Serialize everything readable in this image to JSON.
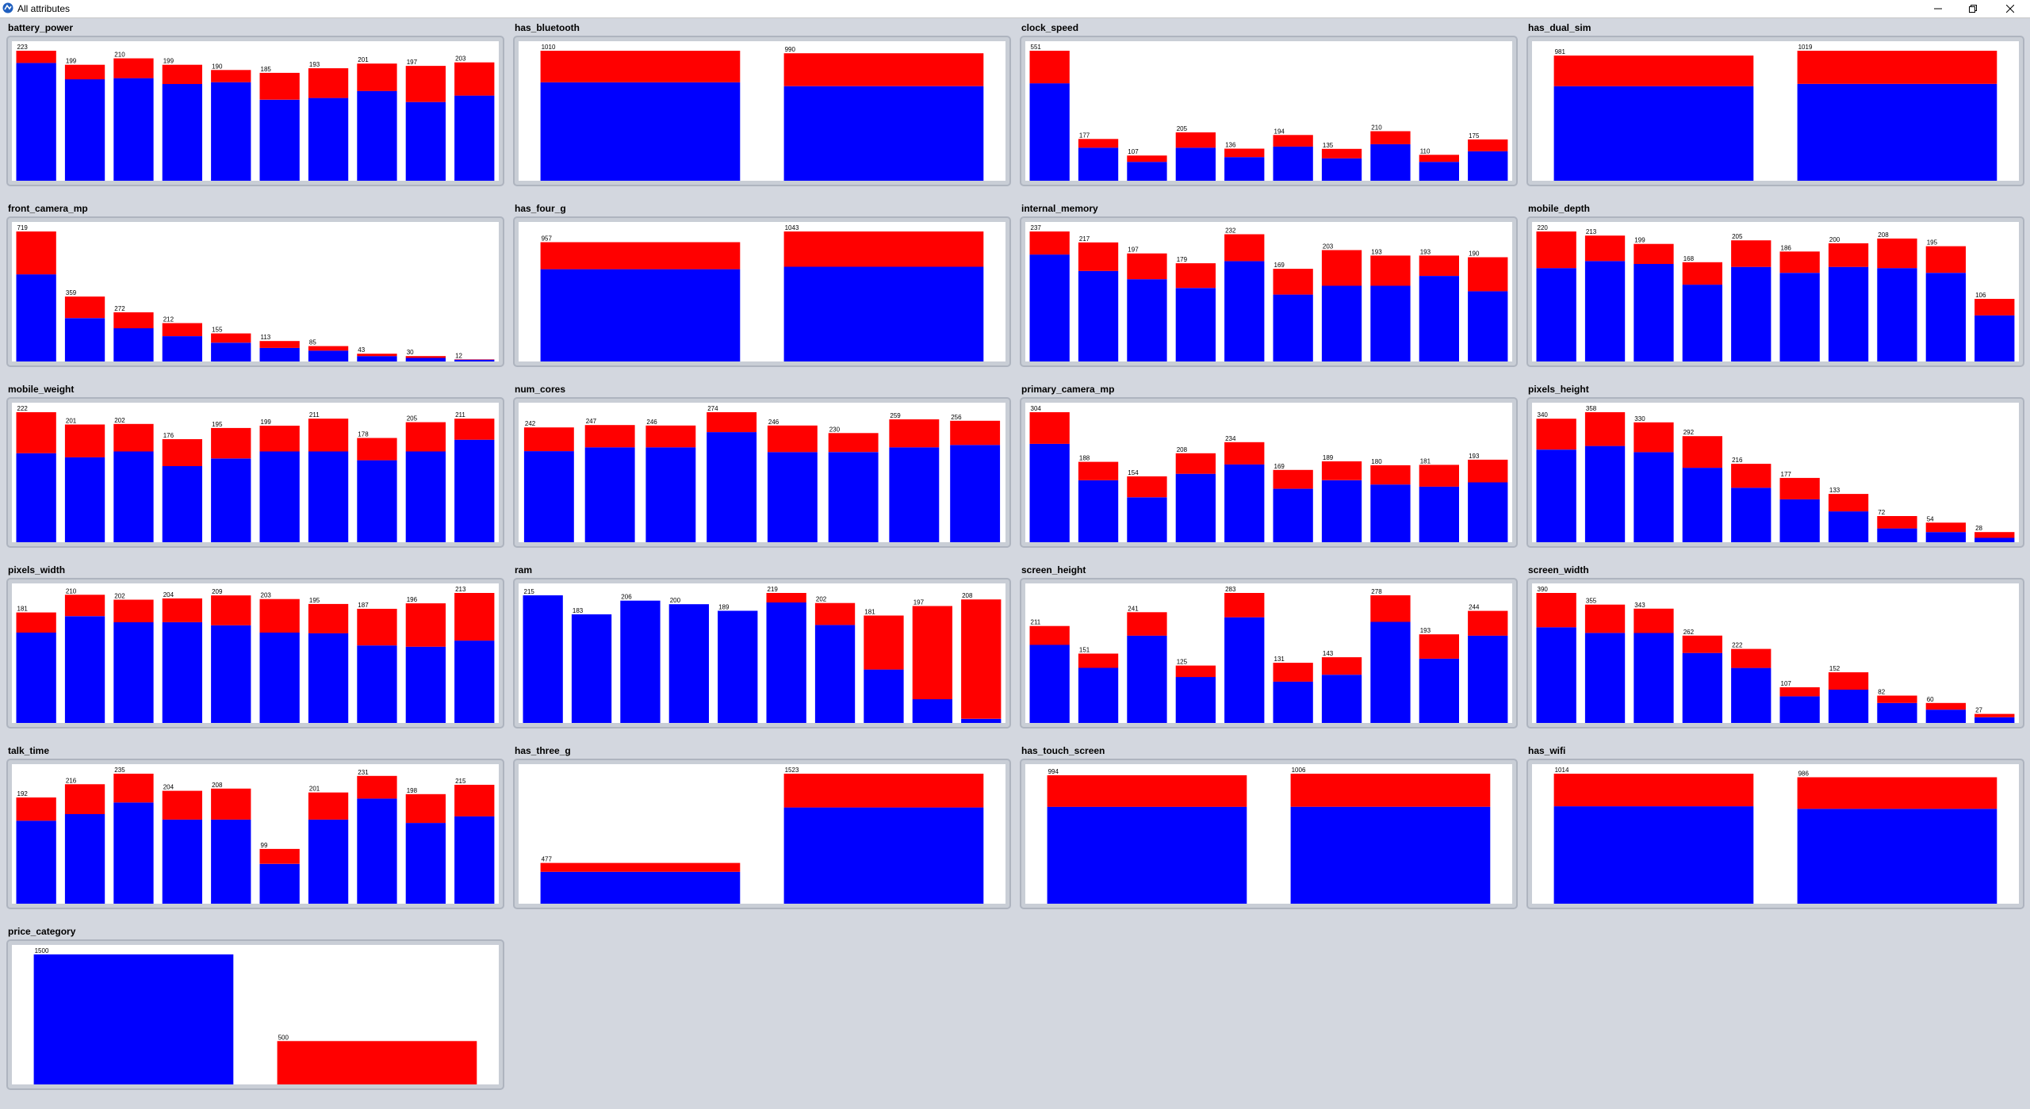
{
  "window": {
    "title": "All attributes",
    "icon": "app-icon"
  },
  "window_controls": [
    "minimize-icon",
    "restore-icon",
    "close-icon"
  ],
  "colors": {
    "series_0": "#0000ff",
    "series_1": "#ff0000"
  },
  "panels": [
    {
      "title": "battery_power"
    },
    {
      "title": "has_bluetooth"
    },
    {
      "title": "clock_speed"
    },
    {
      "title": "has_dual_sim"
    },
    {
      "title": "front_camera_mp"
    },
    {
      "title": "has_four_g"
    },
    {
      "title": "internal_memory"
    },
    {
      "title": "mobile_depth"
    },
    {
      "title": "mobile_weight"
    },
    {
      "title": "num_cores"
    },
    {
      "title": "primary_camera_mp"
    },
    {
      "title": "pixels_height"
    },
    {
      "title": "pixels_width"
    },
    {
      "title": "ram"
    },
    {
      "title": "screen_height"
    },
    {
      "title": "screen_width"
    },
    {
      "title": "talk_time"
    },
    {
      "title": "has_three_g"
    },
    {
      "title": "has_touch_screen"
    },
    {
      "title": "has_wifi"
    },
    {
      "title": "price_category"
    }
  ],
  "chart_data": [
    {
      "type": "bar",
      "stacked": true,
      "title": "battery_power",
      "totals": [
        223,
        199,
        210,
        199,
        190,
        185,
        193,
        201,
        197,
        203
      ],
      "series": [
        {
          "values": [
            202,
            174,
            176,
            166,
            169,
            139,
            142,
            154,
            135,
            146
          ]
        },
        {
          "values": [
            21,
            25,
            34,
            33,
            21,
            46,
            51,
            47,
            62,
            57
          ]
        }
      ]
    },
    {
      "type": "bar",
      "stacked": true,
      "title": "has_bluetooth",
      "totals": [
        1010,
        990
      ],
      "series": [
        {
          "values": [
            765,
            735
          ]
        },
        {
          "values": [
            245,
            255
          ]
        }
      ]
    },
    {
      "type": "bar",
      "stacked": true,
      "title": "clock_speed",
      "totals": [
        551,
        177,
        107,
        205,
        136,
        194,
        135,
        210,
        110,
        175
      ],
      "series": [
        {
          "values": [
            413,
            140,
            80,
            140,
            100,
            145,
            95,
            155,
            80,
            125
          ]
        },
        {
          "values": [
            138,
            37,
            27,
            65,
            36,
            49,
            40,
            55,
            30,
            50
          ]
        }
      ]
    },
    {
      "type": "bar",
      "stacked": true,
      "title": "has_dual_sim",
      "totals": [
        981,
        1019
      ],
      "series": [
        {
          "values": [
            741,
            759
          ]
        },
        {
          "values": [
            240,
            260
          ]
        }
      ]
    },
    {
      "type": "bar",
      "stacked": true,
      "title": "front_camera_mp",
      "totals": [
        719,
        359,
        272,
        212,
        155,
        113,
        85,
        43,
        30,
        12
      ],
      "series": [
        {
          "values": [
            482,
            240,
            184,
            140,
            104,
            75,
            60,
            30,
            20,
            10
          ]
        },
        {
          "values": [
            237,
            119,
            88,
            72,
            51,
            38,
            25,
            13,
            10,
            2
          ]
        }
      ]
    },
    {
      "type": "bar",
      "stacked": true,
      "title": "has_four_g",
      "totals": [
        957,
        1043
      ],
      "series": [
        {
          "values": [
            740,
            760
          ]
        },
        {
          "values": [
            217,
            283
          ]
        }
      ]
    },
    {
      "type": "bar",
      "stacked": true,
      "title": "internal_memory",
      "totals": [
        237,
        217,
        197,
        179,
        232,
        169,
        203,
        193,
        193,
        190
      ],
      "series": [
        {
          "values": [
            195,
            165,
            150,
            134,
            183,
            122,
            138,
            138,
            156,
            128
          ]
        },
        {
          "values": [
            42,
            52,
            47,
            45,
            49,
            47,
            65,
            55,
            37,
            62
          ]
        }
      ]
    },
    {
      "type": "bar",
      "stacked": true,
      "title": "mobile_depth",
      "totals": [
        220,
        213,
        199,
        168,
        205,
        186,
        200,
        208,
        195,
        106
      ],
      "series": [
        {
          "values": [
            158,
            170,
            165,
            130,
            160,
            150,
            160,
            158,
            150,
            78
          ]
        },
        {
          "values": [
            62,
            43,
            34,
            38,
            45,
            36,
            40,
            50,
            45,
            28
          ]
        }
      ]
    },
    {
      "type": "bar",
      "stacked": true,
      "title": "mobile_weight",
      "totals": [
        222,
        201,
        202,
        176,
        195,
        199,
        211,
        178,
        205,
        211
      ],
      "series": [
        {
          "values": [
            152,
            145,
            155,
            130,
            143,
            155,
            155,
            140,
            155,
            175
          ]
        },
        {
          "values": [
            70,
            56,
            47,
            46,
            52,
            44,
            56,
            38,
            50,
            36
          ]
        }
      ]
    },
    {
      "type": "bar",
      "stacked": true,
      "title": "num_cores",
      "totals": [
        242,
        247,
        246,
        274,
        246,
        230,
        259,
        256
      ],
      "series": [
        {
          "values": [
            192,
            200,
            200,
            232,
            190,
            190,
            200,
            205
          ]
        },
        {
          "values": [
            50,
            47,
            46,
            42,
            56,
            40,
            59,
            51
          ]
        }
      ]
    },
    {
      "type": "bar",
      "stacked": true,
      "title": "primary_camera_mp",
      "totals": [
        304,
        188,
        154,
        208,
        234,
        169,
        189,
        180,
        181,
        193
      ],
      "series": [
        {
          "values": [
            230,
            145,
            105,
            160,
            182,
            125,
            145,
            135,
            130,
            140
          ]
        },
        {
          "values": [
            74,
            43,
            49,
            48,
            52,
            44,
            44,
            45,
            51,
            53
          ]
        }
      ]
    },
    {
      "type": "bar",
      "stacked": true,
      "title": "pixels_height",
      "totals": [
        340,
        358,
        330,
        292,
        216,
        177,
        133,
        72,
        54,
        28
      ],
      "series": [
        {
          "values": [
            255,
            265,
            248,
            205,
            150,
            118,
            85,
            38,
            28,
            12
          ]
        },
        {
          "values": [
            85,
            93,
            82,
            87,
            66,
            59,
            48,
            34,
            26,
            16
          ]
        }
      ]
    },
    {
      "type": "bar",
      "stacked": true,
      "title": "pixels_width",
      "totals": [
        181,
        210,
        202,
        204,
        209,
        203,
        195,
        187,
        196,
        213
      ],
      "series": [
        {
          "values": [
            148,
            175,
            165,
            165,
            160,
            148,
            147,
            127,
            125,
            135
          ]
        },
        {
          "values": [
            33,
            35,
            37,
            39,
            49,
            55,
            48,
            60,
            71,
            78
          ]
        }
      ]
    },
    {
      "type": "bar",
      "stacked": true,
      "title": "ram",
      "totals": [
        215,
        183,
        206,
        200,
        189,
        219,
        202,
        181,
        197,
        208
      ],
      "series": [
        {
          "values": [
            215,
            183,
            206,
            200,
            189,
            203,
            165,
            90,
            40,
            7
          ]
        },
        {
          "values": [
            0,
            0,
            0,
            0,
            0,
            16,
            37,
            91,
            157,
            201
          ]
        }
      ]
    },
    {
      "type": "bar",
      "stacked": true,
      "title": "screen_height",
      "totals": [
        211,
        151,
        241,
        125,
        283,
        131,
        143,
        278,
        193,
        244
      ],
      "series": [
        {
          "values": [
            170,
            120,
            190,
            100,
            230,
            90,
            105,
            220,
            140,
            190
          ]
        },
        {
          "values": [
            41,
            31,
            51,
            25,
            53,
            41,
            38,
            58,
            53,
            54
          ]
        }
      ]
    },
    {
      "type": "bar",
      "stacked": true,
      "title": "screen_width",
      "totals": [
        390,
        355,
        343,
        262,
        222,
        107,
        152,
        82,
        60,
        27
      ],
      "series": [
        {
          "values": [
            287,
            270,
            270,
            210,
            165,
            80,
            100,
            60,
            40,
            17
          ]
        },
        {
          "values": [
            103,
            85,
            73,
            52,
            57,
            27,
            52,
            22,
            20,
            10
          ]
        }
      ]
    },
    {
      "type": "bar",
      "stacked": true,
      "title": "talk_time",
      "totals": [
        192,
        216,
        235,
        204,
        208,
        99,
        201,
        231,
        198,
        215
      ],
      "series": [
        {
          "values": [
            150,
            162,
            183,
            152,
            152,
            72,
            152,
            190,
            146,
            158
          ]
        },
        {
          "values": [
            42,
            54,
            52,
            52,
            56,
            27,
            49,
            41,
            52,
            57
          ]
        }
      ]
    },
    {
      "type": "bar",
      "stacked": true,
      "title": "has_three_g",
      "totals": [
        477,
        1523
      ],
      "series": [
        {
          "values": [
            373,
            1127
          ]
        },
        {
          "values": [
            104,
            396
          ]
        }
      ]
    },
    {
      "type": "bar",
      "stacked": true,
      "title": "has_touch_screen",
      "totals": [
        994,
        1006
      ],
      "series": [
        {
          "values": [
            750,
            750
          ]
        },
        {
          "values": [
            244,
            256
          ]
        }
      ]
    },
    {
      "type": "bar",
      "stacked": true,
      "title": "has_wifi",
      "totals": [
        1014,
        986
      ],
      "series": [
        {
          "values": [
            760,
            740
          ]
        },
        {
          "values": [
            254,
            246
          ]
        }
      ]
    },
    {
      "type": "bar",
      "stacked": true,
      "title": "price_category",
      "totals": [
        1500,
        500
      ],
      "series": [
        {
          "values": [
            1500,
            0
          ]
        },
        {
          "values": [
            0,
            500
          ]
        }
      ]
    }
  ]
}
